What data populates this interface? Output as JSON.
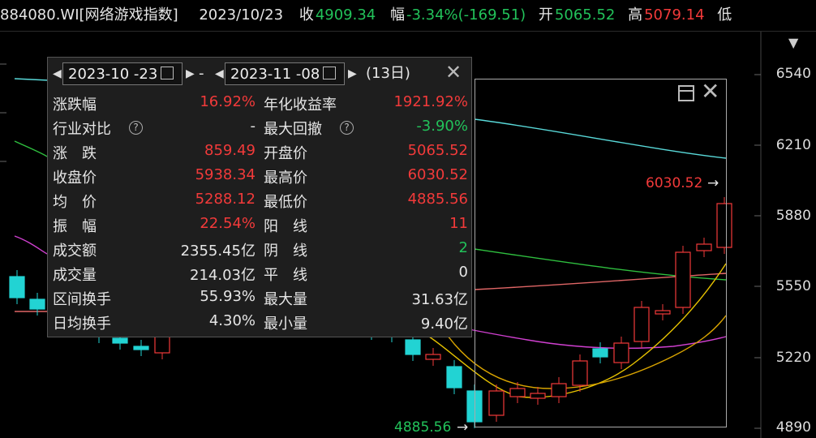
{
  "topbar": {
    "code_name": "884080.WI[网络游戏指数]",
    "date": "2023/10/23",
    "close_label": "收",
    "close_value": "4909.34",
    "change_label": "幅",
    "change_value": "-3.34%(-169.51)",
    "open_label": "开",
    "open_value": "5065.52",
    "high_label": "高",
    "high_value": "5079.14",
    "low_label": "低"
  },
  "panel": {
    "start_date": "2023-10 -23",
    "dash": "-",
    "end_date": "2023-11 -08",
    "days": "(13日)",
    "rows": [
      {
        "l1": "涨跌幅",
        "v1": "16.92%",
        "c1": "#f23a3a",
        "l2": "年化收益率",
        "v2": "1921.92%",
        "c2": "#f23a3a"
      },
      {
        "l1": "行业对比",
        "v1": "-",
        "c1": "#e6e6e6",
        "l2": "最大回撤",
        "v2": "-3.90%",
        "c2": "#22c25a"
      },
      {
        "l1": "涨　跌",
        "v1": "859.49",
        "c1": "#f23a3a",
        "l2": "开盘价",
        "v2": "5065.52",
        "c2": "#f23a3a"
      },
      {
        "l1": "收盘价",
        "v1": "5938.34",
        "c1": "#f23a3a",
        "l2": "最高价",
        "v2": "6030.52",
        "c2": "#f23a3a"
      },
      {
        "l1": "均　价",
        "v1": "5288.12",
        "c1": "#f23a3a",
        "l2": "最低价",
        "v2": "4885.56",
        "c2": "#f23a3a"
      },
      {
        "l1": "振　幅",
        "v1": "22.54%",
        "c1": "#f23a3a",
        "l2": "阳　线",
        "v2": "11",
        "c2": "#f23a3a"
      },
      {
        "l1": "成交额",
        "v1": "2355.45亿",
        "c1": "#e6e6e6",
        "l2": "阴　线",
        "v2": "2",
        "c2": "#22c25a"
      },
      {
        "l1": "成交量",
        "v1": "214.03亿",
        "c1": "#e6e6e6",
        "l2": "平　线",
        "v2": "0",
        "c2": "#e6e6e6"
      },
      {
        "l1": "区间换手",
        "v1": "55.93%",
        "c1": "#e6e6e6",
        "l2": "最大量",
        "v2": "31.63亿",
        "c2": "#e6e6e6"
      },
      {
        "l1": "日均换手",
        "v1": "4.30%",
        "c1": "#e6e6e6",
        "l2": "最小量",
        "v2": "9.40亿",
        "c2": "#e6e6e6"
      }
    ]
  },
  "chart": {
    "y_ticks": [
      "6540",
      "6210",
      "5880",
      "5550",
      "5220",
      "4890"
    ],
    "high_mark": "6030.52",
    "low_mark": "4885.56",
    "up_color": "#f23a3a",
    "down_color": "#22d3d3"
  }
}
